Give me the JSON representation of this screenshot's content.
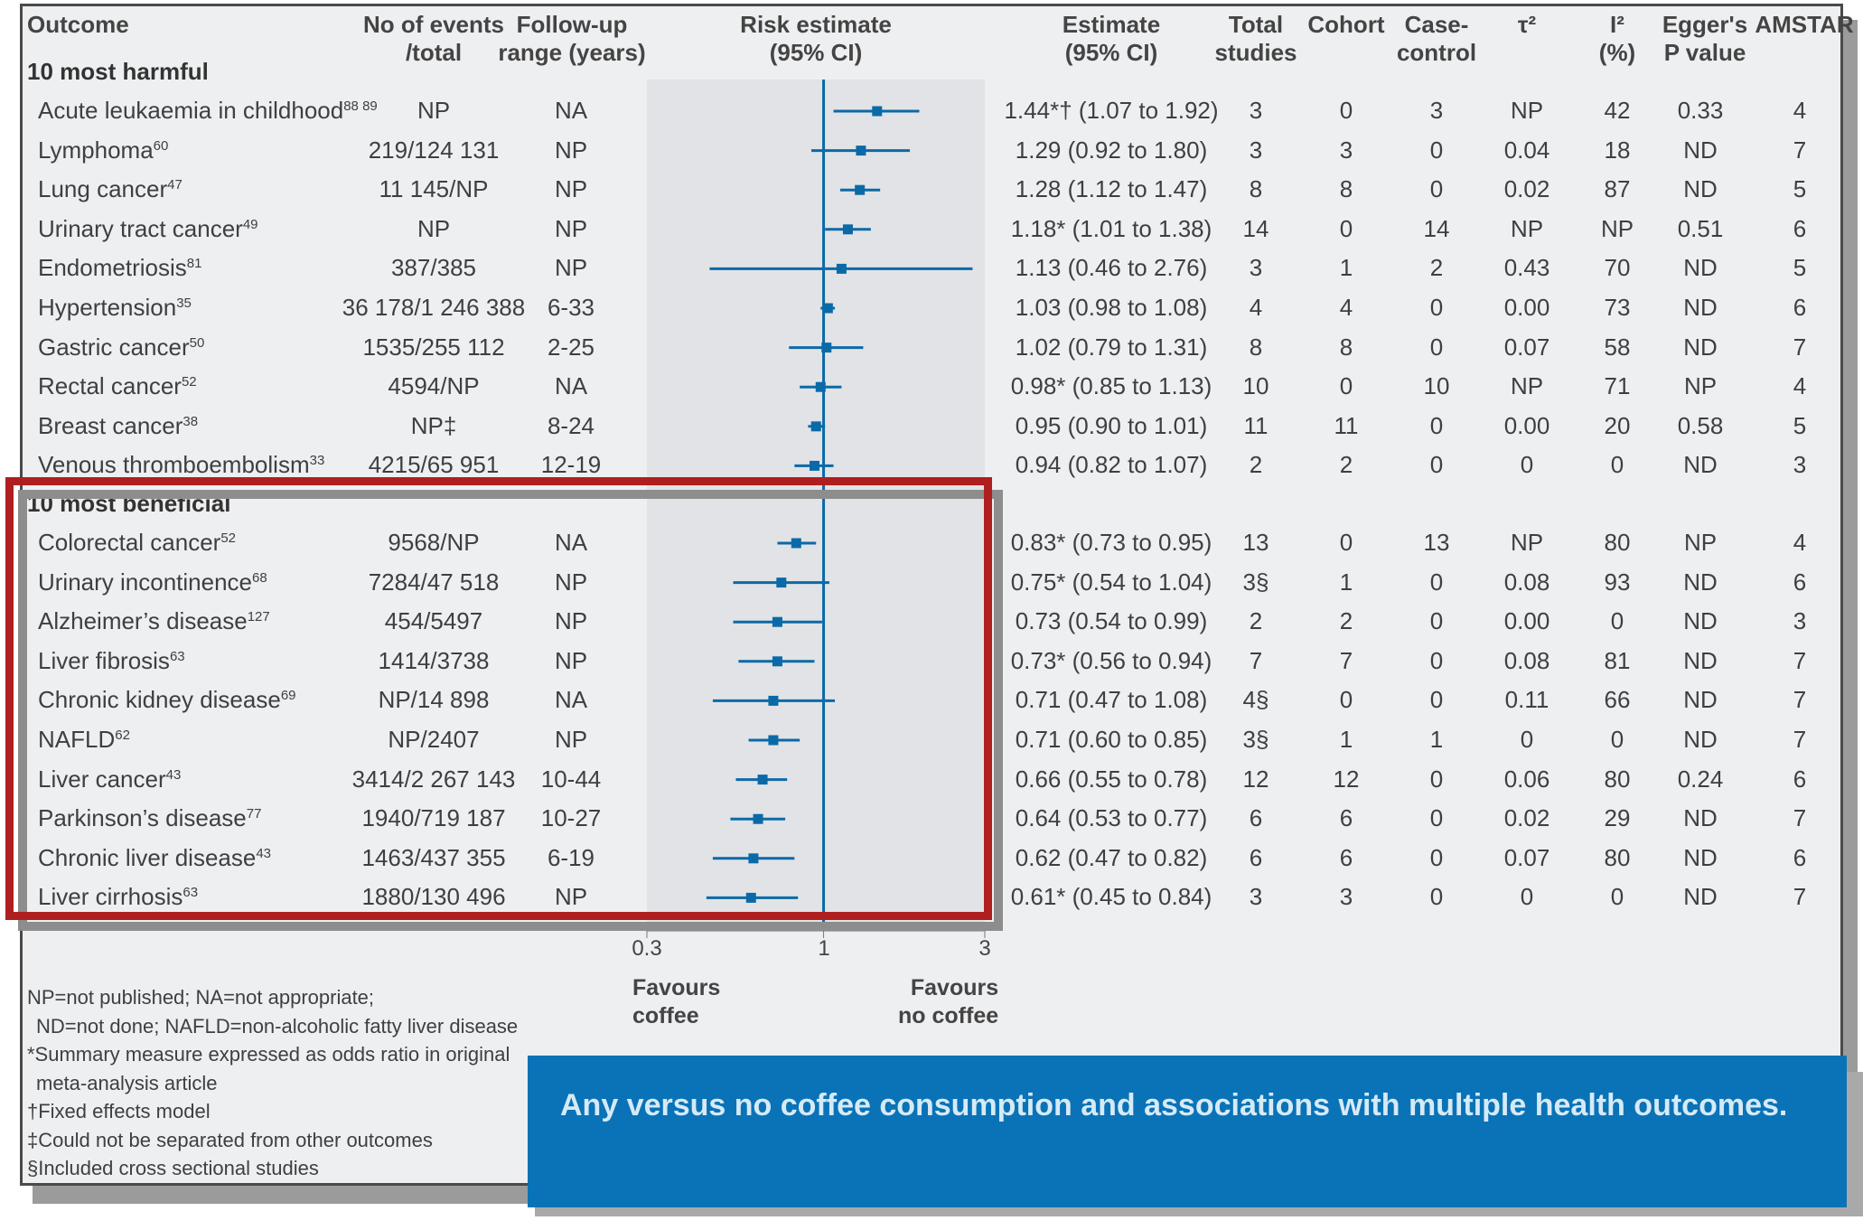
{
  "headers": {
    "outcome": "Outcome",
    "events_1": "No of events",
    "events_2": "/total",
    "followup_1": "Follow-up",
    "followup_2": "range (years)",
    "risk_1": "Risk estimate",
    "risk_2": "(95% CI)",
    "estimate_1": "Estimate",
    "estimate_2": "(95% CI)",
    "total_1": "Total",
    "total_2": "studies",
    "cohort": "Cohort",
    "casecontrol_1": "Case-",
    "casecontrol_2": "control",
    "tau": "τ²",
    "i2_1": "I²",
    "i2_2": "(%)",
    "egger_1": "Egger's",
    "egger_2": "P value",
    "amstar": "AMSTAR"
  },
  "sections": {
    "harmful": "10 most harmful",
    "beneficial": "10 most beneficial"
  },
  "axis": {
    "tick_03": "0.3",
    "tick_1": "1",
    "tick_3": "3",
    "favours_left_1": "Favours",
    "favours_left_2": "coffee",
    "favours_right_1": "Favours",
    "favours_right_2": "no coffee"
  },
  "footnotes": [
    "NP=not published; NA=not appropriate;",
    "ND=not done; NAFLD=non-alcoholic fatty liver disease",
    "*Summary measure expressed as odds ratio in original",
    "meta-analysis article",
    "†Fixed effects model",
    "‡Could not be separated from other outcomes",
    "§Included cross sectional studies"
  ],
  "caption": "Any versus no coffee consumption and associations with multiple health outcomes.",
  "colors": {
    "marker": "#0a6aa8",
    "highlight": "#b01f1f",
    "caption_bg": "#0a73b7",
    "panel_bg": "#eeeff1",
    "plot_band": "#e2e3e6"
  },
  "chart_data": {
    "type": "forest",
    "xscale": "log",
    "xlim": [
      0.3,
      3
    ],
    "xticks": [
      "0.3",
      "1",
      "3"
    ],
    "reference_line": 1,
    "rows": [
      {
        "group": "harmful",
        "outcome": "Acute leukaemia in childhood",
        "ref": "88 89",
        "events": "NP",
        "followup": "NA",
        "est": 1.44,
        "lo": 1.07,
        "hi": 1.92,
        "est_text": "1.44*† (1.07 to 1.92)",
        "total": "3",
        "cohort": "0",
        "casecontrol": "3",
        "tau": "NP",
        "i2": "42",
        "egger": "0.33",
        "amstar": "4"
      },
      {
        "group": "harmful",
        "outcome": "Lymphoma",
        "ref": "60",
        "events": "219/124 131",
        "followup": "NP",
        "est": 1.29,
        "lo": 0.92,
        "hi": 1.8,
        "est_text": "1.29 (0.92 to 1.80)",
        "total": "3",
        "cohort": "3",
        "casecontrol": "0",
        "tau": "0.04",
        "i2": "18",
        "egger": "ND",
        "amstar": "7"
      },
      {
        "group": "harmful",
        "outcome": "Lung cancer",
        "ref": "47",
        "events": "11 145/NP",
        "followup": "NP",
        "est": 1.28,
        "lo": 1.12,
        "hi": 1.47,
        "est_text": "1.28 (1.12 to 1.47)",
        "total": "8",
        "cohort": "8",
        "casecontrol": "0",
        "tau": "0.02",
        "i2": "87",
        "egger": "ND",
        "amstar": "5"
      },
      {
        "group": "harmful",
        "outcome": "Urinary tract cancer",
        "ref": "49",
        "events": "NP",
        "followup": "NP",
        "est": 1.18,
        "lo": 1.01,
        "hi": 1.38,
        "est_text": "1.18* (1.01 to 1.38)",
        "total": "14",
        "cohort": "0",
        "casecontrol": "14",
        "tau": "NP",
        "i2": "NP",
        "egger": "0.51",
        "amstar": "6"
      },
      {
        "group": "harmful",
        "outcome": "Endometriosis",
        "ref": "81",
        "events": "387/385",
        "followup": "NP",
        "est": 1.13,
        "lo": 0.46,
        "hi": 2.76,
        "est_text": "1.13 (0.46 to 2.76)",
        "total": "3",
        "cohort": "1",
        "casecontrol": "2",
        "tau": "0.43",
        "i2": "70",
        "egger": "ND",
        "amstar": "5"
      },
      {
        "group": "harmful",
        "outcome": "Hypertension",
        "ref": "35",
        "events": "36 178/1 246 388",
        "followup": "6-33",
        "est": 1.03,
        "lo": 0.98,
        "hi": 1.08,
        "est_text": "1.03 (0.98 to 1.08)",
        "total": "4",
        "cohort": "4",
        "casecontrol": "0",
        "tau": "0.00",
        "i2": "73",
        "egger": "ND",
        "amstar": "6"
      },
      {
        "group": "harmful",
        "outcome": "Gastric cancer",
        "ref": "50",
        "events": "1535/255 112",
        "followup": "2-25",
        "est": 1.02,
        "lo": 0.79,
        "hi": 1.31,
        "est_text": "1.02 (0.79 to 1.31)",
        "total": "8",
        "cohort": "8",
        "casecontrol": "0",
        "tau": "0.07",
        "i2": "58",
        "egger": "ND",
        "amstar": "7"
      },
      {
        "group": "harmful",
        "outcome": "Rectal cancer",
        "ref": "52",
        "events": "4594/NP",
        "followup": "NA",
        "est": 0.98,
        "lo": 0.85,
        "hi": 1.13,
        "est_text": "0.98* (0.85 to 1.13)",
        "total": "10",
        "cohort": "0",
        "casecontrol": "10",
        "tau": "NP",
        "i2": "71",
        "egger": "NP",
        "amstar": "4"
      },
      {
        "group": "harmful",
        "outcome": "Breast cancer",
        "ref": "38",
        "events": "NP‡",
        "followup": "8-24",
        "est": 0.95,
        "lo": 0.9,
        "hi": 1.01,
        "est_text": "0.95 (0.90 to 1.01)",
        "total": "11",
        "cohort": "11",
        "casecontrol": "0",
        "tau": "0.00",
        "i2": "20",
        "egger": "0.58",
        "amstar": "5"
      },
      {
        "group": "harmful",
        "outcome": "Venous thromboembolism",
        "ref": "33",
        "events": "4215/65 951",
        "followup": "12-19",
        "est": 0.94,
        "lo": 0.82,
        "hi": 1.07,
        "est_text": "0.94 (0.82 to 1.07)",
        "total": "2",
        "cohort": "2",
        "casecontrol": "0",
        "tau": "0",
        "i2": "0",
        "egger": "ND",
        "amstar": "3"
      },
      {
        "group": "beneficial",
        "outcome": "Colorectal cancer",
        "ref": "52",
        "events": "9568/NP",
        "followup": "NA",
        "est": 0.83,
        "lo": 0.73,
        "hi": 0.95,
        "est_text": "0.83* (0.73 to 0.95)",
        "total": "13",
        "cohort": "0",
        "casecontrol": "13",
        "tau": "NP",
        "i2": "80",
        "egger": "NP",
        "amstar": "4"
      },
      {
        "group": "beneficial",
        "outcome": "Urinary incontinence",
        "ref": "68",
        "events": "7284/47 518",
        "followup": "NP",
        "est": 0.75,
        "lo": 0.54,
        "hi": 1.04,
        "est_text": "0.75* (0.54 to 1.04)",
        "total": "3§",
        "cohort": "1",
        "casecontrol": "0",
        "tau": "0.08",
        "i2": "93",
        "egger": "ND",
        "amstar": "6"
      },
      {
        "group": "beneficial",
        "outcome": "Alzheimer’s disease",
        "ref": "127",
        "events": "454/5497",
        "followup": "NP",
        "est": 0.73,
        "lo": 0.54,
        "hi": 0.99,
        "est_text": "0.73 (0.54 to 0.99)",
        "total": "2",
        "cohort": "2",
        "casecontrol": "0",
        "tau": "0.00",
        "i2": "0",
        "egger": "ND",
        "amstar": "3"
      },
      {
        "group": "beneficial",
        "outcome": "Liver fibrosis",
        "ref": "63",
        "events": "1414/3738",
        "followup": "NP",
        "est": 0.73,
        "lo": 0.56,
        "hi": 0.94,
        "est_text": "0.73* (0.56 to 0.94)",
        "total": "7",
        "cohort": "7",
        "casecontrol": "0",
        "tau": "0.08",
        "i2": "81",
        "egger": "ND",
        "amstar": "7"
      },
      {
        "group": "beneficial",
        "outcome": "Chronic kidney disease",
        "ref": "69",
        "events": "NP/14 898",
        "followup": "NA",
        "est": 0.71,
        "lo": 0.47,
        "hi": 1.08,
        "est_text": "0.71 (0.47 to 1.08)",
        "total": "4§",
        "cohort": "0",
        "casecontrol": "0",
        "tau": "0.11",
        "i2": "66",
        "egger": "ND",
        "amstar": "7"
      },
      {
        "group": "beneficial",
        "outcome": "NAFLD",
        "ref": "62",
        "events": "NP/2407",
        "followup": "NP",
        "est": 0.71,
        "lo": 0.6,
        "hi": 0.85,
        "est_text": "0.71 (0.60 to 0.85)",
        "total": "3§",
        "cohort": "1",
        "casecontrol": "1",
        "tau": "0",
        "i2": "0",
        "egger": "ND",
        "amstar": "7"
      },
      {
        "group": "beneficial",
        "outcome": "Liver cancer",
        "ref": "43",
        "events": "3414/2 267 143",
        "followup": "10-44",
        "est": 0.66,
        "lo": 0.55,
        "hi": 0.78,
        "est_text": "0.66 (0.55 to 0.78)",
        "total": "12",
        "cohort": "12",
        "casecontrol": "0",
        "tau": "0.06",
        "i2": "80",
        "egger": "0.24",
        "amstar": "6"
      },
      {
        "group": "beneficial",
        "outcome": "Parkinson’s disease",
        "ref": "77",
        "events": "1940/719 187",
        "followup": "10-27",
        "est": 0.64,
        "lo": 0.53,
        "hi": 0.77,
        "est_text": "0.64 (0.53 to 0.77)",
        "total": "6",
        "cohort": "6",
        "casecontrol": "0",
        "tau": "0.02",
        "i2": "29",
        "egger": "ND",
        "amstar": "7"
      },
      {
        "group": "beneficial",
        "outcome": "Chronic liver disease",
        "ref": "43",
        "events": "1463/437 355",
        "followup": "6-19",
        "est": 0.62,
        "lo": 0.47,
        "hi": 0.82,
        "est_text": "0.62 (0.47 to 0.82)",
        "total": "6",
        "cohort": "6",
        "casecontrol": "0",
        "tau": "0.07",
        "i2": "80",
        "egger": "ND",
        "amstar": "6"
      },
      {
        "group": "beneficial",
        "outcome": "Liver cirrhosis",
        "ref": "63",
        "events": "1880/130 496",
        "followup": "NP",
        "est": 0.61,
        "lo": 0.45,
        "hi": 0.84,
        "est_text": "0.61* (0.45 to 0.84)",
        "total": "3",
        "cohort": "3",
        "casecontrol": "0",
        "tau": "0",
        "i2": "0",
        "egger": "ND",
        "amstar": "7"
      }
    ]
  }
}
